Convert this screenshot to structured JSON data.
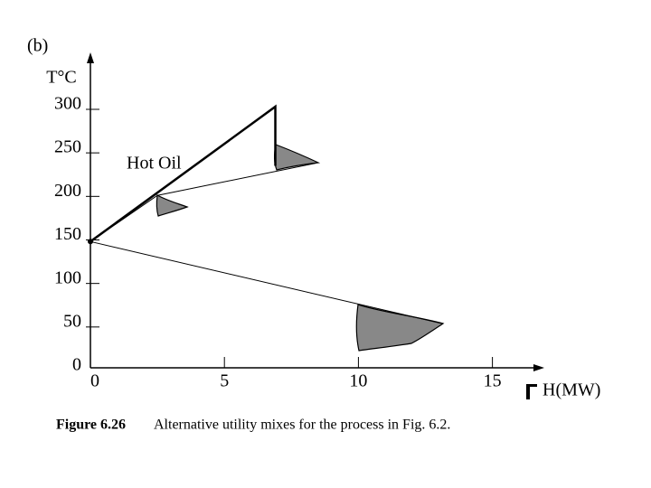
{
  "panel": "(b)",
  "chart_data": {
    "type": "line",
    "ylabel": "T°C",
    "xlabel": "H(MW)",
    "xlim": [
      0,
      16.7
    ],
    "ylim": [
      0,
      355
    ],
    "xticks": [
      0,
      5,
      10,
      15
    ],
    "yticks": [
      0,
      50,
      100,
      150,
      200,
      250,
      300
    ],
    "annotation": "Hot Oil",
    "series": [
      {
        "color": "#000000",
        "x": [
          0,
          6.9,
          6.9
        ],
        "values": [
          145,
          300,
          232
        ]
      },
      {
        "color": "#000000",
        "x": [
          0,
          2.5,
          8.4
        ],
        "values": [
          145,
          198,
          235
        ]
      },
      {
        "color": "#000000",
        "x": [
          0,
          13.1
        ],
        "values": [
          145,
          51
        ]
      }
    ]
  },
  "caption": {
    "label": "Figure 6.26",
    "text": "Alternative utility mixes for the process in Fig. 6.2."
  }
}
